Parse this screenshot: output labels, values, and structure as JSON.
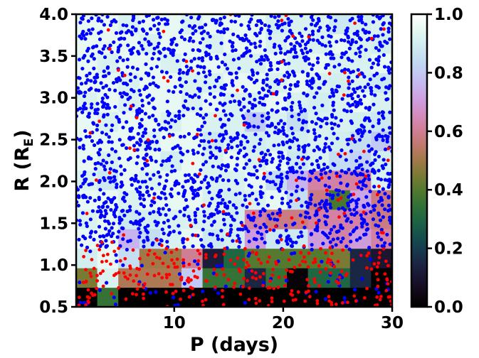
{
  "chart_data": {
    "type": "heatmap",
    "title": "",
    "xlabel": "P (days)",
    "ylabel_main": "R (R",
    "ylabel_sub": "E",
    "ylabel_close": ")",
    "xlim": [
      1,
      30
    ],
    "ylim": [
      0.5,
      4.0
    ],
    "xticks": [
      10,
      20,
      30
    ],
    "xtick_labels": [
      "10",
      "20",
      "30"
    ],
    "yticks": [
      0.5,
      1.0,
      1.5,
      2.0,
      2.5,
      3.0,
      3.5,
      4.0
    ],
    "ytick_labels": [
      "0.5",
      "1.0",
      "1.5",
      "2.0",
      "2.5",
      "3.0",
      "3.5",
      "4.0"
    ],
    "colorbar": {
      "colormap": "cubehelix",
      "range": [
        0.0,
        1.0
      ],
      "ticks": [
        0.0,
        0.2,
        0.4,
        0.6,
        0.8,
        1.0
      ],
      "tick_labels": [
        "0.0",
        "0.2",
        "0.4",
        "0.6",
        "0.8",
        "1.0"
      ]
    },
    "grid": {
      "x_bins": 15,
      "y_bins": 15,
      "note": "rows listed from R=0.5 (bottom) to R=4.0 (top), columns from P=1 (left) to P=30 (right)",
      "values": [
        [
          0.0,
          0.35,
          0.0,
          0.0,
          0.0,
          0.0,
          0.0,
          0.0,
          0.0,
          0.0,
          0.0,
          0.0,
          0.0,
          0.0,
          0.0
        ],
        [
          0.45,
          0.92,
          0.52,
          0.52,
          0.52,
          0.8,
          0.35,
          0.35,
          0.15,
          0.35,
          0.02,
          0.3,
          0.3,
          0.15,
          0.0
        ],
        [
          0.9,
          0.95,
          0.85,
          0.5,
          0.5,
          0.6,
          0.12,
          0.3,
          0.4,
          0.4,
          0.4,
          0.4,
          0.45,
          0.15,
          0.1
        ],
        [
          0.95,
          0.95,
          0.75,
          0.85,
          0.92,
          0.95,
          0.88,
          0.9,
          0.7,
          0.88,
          0.88,
          0.7,
          0.62,
          0.7,
          0.62
        ],
        [
          0.92,
          0.95,
          0.88,
          0.9,
          0.92,
          0.92,
          0.92,
          0.9,
          0.62,
          0.58,
          0.58,
          0.62,
          0.62,
          0.62,
          0.58
        ],
        [
          0.95,
          0.95,
          0.92,
          0.95,
          0.95,
          0.95,
          0.92,
          0.9,
          0.92,
          0.95,
          0.85,
          0.58,
          0.38,
          0.72,
          0.58
        ],
        [
          0.92,
          0.88,
          0.95,
          0.92,
          0.95,
          0.95,
          0.92,
          0.92,
          0.95,
          0.85,
          0.75,
          0.62,
          0.62,
          0.62,
          0.92
        ],
        [
          0.95,
          0.92,
          0.95,
          0.95,
          0.9,
          0.95,
          0.92,
          0.95,
          0.92,
          0.95,
          0.88,
          0.92,
          0.85,
          0.82,
          0.9
        ],
        [
          0.95,
          0.95,
          0.95,
          0.92,
          0.95,
          0.95,
          0.88,
          0.92,
          0.9,
          0.92,
          0.9,
          0.92,
          0.9,
          0.85,
          0.8
        ],
        [
          0.95,
          0.92,
          0.95,
          0.95,
          0.92,
          0.95,
          0.92,
          0.92,
          0.8,
          0.92,
          0.85,
          0.92,
          0.92,
          0.9,
          0.88
        ],
        [
          0.92,
          0.95,
          0.92,
          0.95,
          0.95,
          0.92,
          0.95,
          0.92,
          0.92,
          0.95,
          0.92,
          0.9,
          0.92,
          0.95,
          0.92
        ],
        [
          0.95,
          0.95,
          0.92,
          0.95,
          0.95,
          0.92,
          0.92,
          0.95,
          0.95,
          0.92,
          0.95,
          0.92,
          0.9,
          0.92,
          0.88
        ],
        [
          0.95,
          0.92,
          0.95,
          0.95,
          0.92,
          0.95,
          0.95,
          0.92,
          0.92,
          0.95,
          0.92,
          0.95,
          0.92,
          0.92,
          0.95
        ],
        [
          0.95,
          0.95,
          0.95,
          0.92,
          0.95,
          0.95,
          0.92,
          0.95,
          0.95,
          0.92,
          0.95,
          0.92,
          0.95,
          0.92,
          0.9
        ],
        [
          0.95,
          0.95,
          0.92,
          0.95,
          0.95,
          0.92,
          0.95,
          0.95,
          0.95,
          0.9,
          0.92,
          0.92,
          0.88,
          0.9,
          0.92
        ]
      ]
    },
    "series": [
      {
        "color": "#0000ff",
        "marker": "circle",
        "count": 2200,
        "distribution": "uniform over P 1-30, R 0.5-4.0, sparse below R=1.2"
      },
      {
        "color": "#ff0000",
        "marker": "circle",
        "count": 380,
        "distribution": "concentrated at R 0.5-1.2, scattered above"
      }
    ]
  }
}
